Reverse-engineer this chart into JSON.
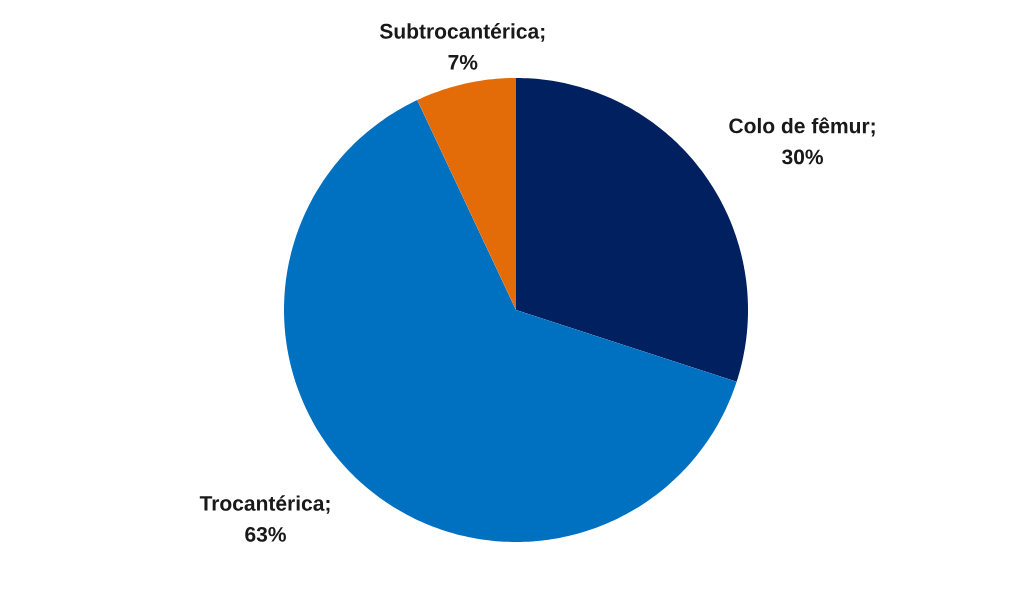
{
  "chart_data": {
    "type": "pie",
    "categories": [
      null,
      null,
      null
    ],
    "values": [
      30,
      63,
      7
    ],
    "colors": [
      "#002060",
      "#0070c0",
      "#e36c09"
    ],
    "value_labels": [
      "Colo de fêmur; 30%",
      "Trocantérica; 63%",
      "Subtrocantérica; 7%"
    ]
  }
}
